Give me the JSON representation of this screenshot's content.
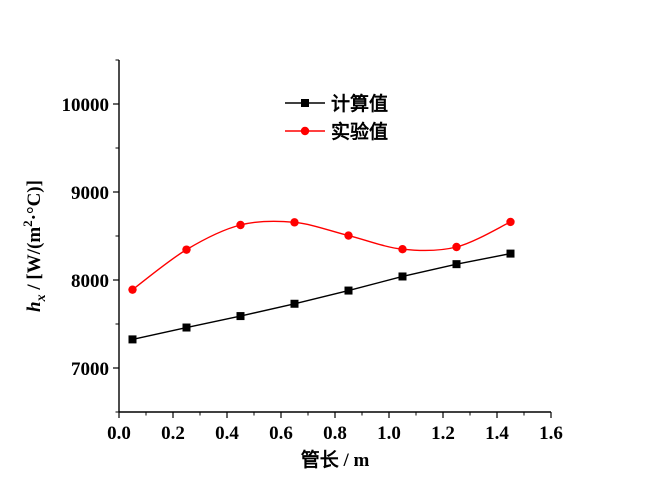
{
  "chart_data": {
    "type": "line",
    "title": "",
    "xlabel": "管长 / m",
    "ylabel": {
      "symbol": "h",
      "sub": "x",
      "unit_prefix": " / [W/(m",
      "sup": "2",
      "unit_suffix": "·°C)]"
    },
    "xlim": [
      0.0,
      1.6
    ],
    "ylim": [
      6500,
      10500
    ],
    "x_ticks": [
      0.0,
      0.2,
      0.4,
      0.6,
      0.8,
      1.0,
      1.2,
      1.4,
      1.6
    ],
    "x_tick_labels": [
      "0.0",
      "0.2",
      "0.4",
      "0.6",
      "0.8",
      "1.0",
      "1.2",
      "1.4",
      "1.6"
    ],
    "y_ticks": [
      7000,
      8000,
      9000,
      10000
    ],
    "y_tick_labels": [
      "7000",
      "8000",
      "9000",
      "10000"
    ],
    "grid": false,
    "legend_position": "top-center",
    "x": [
      0.05,
      0.25,
      0.45,
      0.65,
      0.85,
      1.05,
      1.25,
      1.45
    ],
    "series": [
      {
        "name": "计算值",
        "color": "#000000",
        "marker": "square",
        "line_style": "straight",
        "values": [
          7325,
          7460,
          7590,
          7730,
          7880,
          8040,
          8180,
          8300
        ]
      },
      {
        "name": "实验值",
        "color": "#ff0000",
        "marker": "circle",
        "line_style": "smooth",
        "values": [
          7890,
          8345,
          8625,
          8655,
          8505,
          8350,
          8375,
          8660
        ]
      }
    ]
  }
}
